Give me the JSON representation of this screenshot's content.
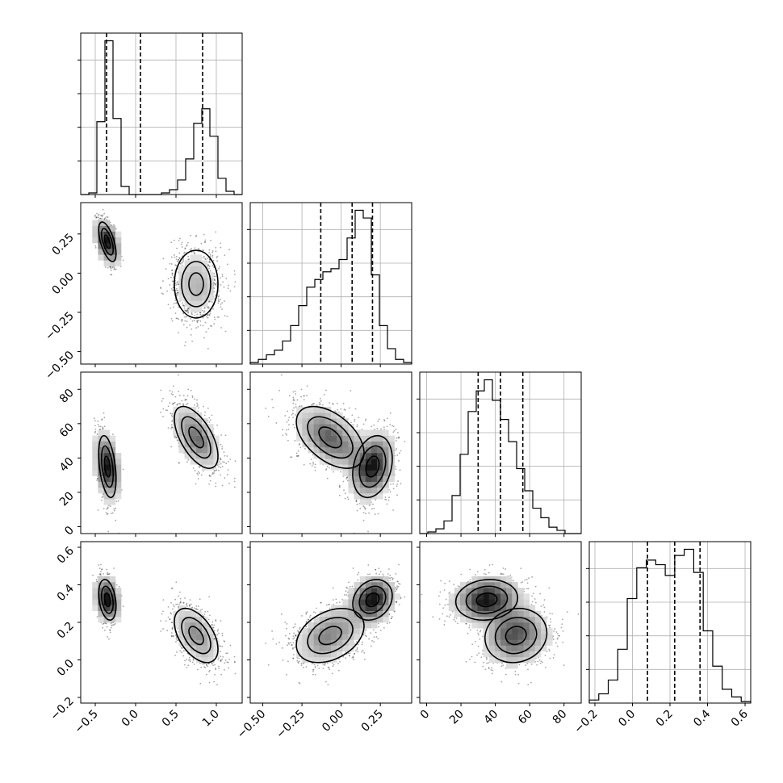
{
  "chart_data": {
    "type": "corner",
    "variables": [
      {
        "id": "p0",
        "range": [
          -0.68,
          1.32
        ],
        "ticks": [
          "-0.5",
          "0.0",
          "0.5",
          "1.0"
        ],
        "tick_values": [
          -0.5,
          0.0,
          0.5,
          1.0
        ]
      },
      {
        "id": "p1",
        "range": [
          -0.58,
          0.45
        ],
        "ticks": [
          "-0.50",
          "-0.25",
          "0.00",
          "0.25"
        ],
        "tick_values": [
          -0.5,
          -0.25,
          0.0,
          0.25
        ]
      },
      {
        "id": "p2",
        "range": [
          -4,
          90
        ],
        "ticks": [
          "0",
          "20",
          "40",
          "60",
          "80"
        ],
        "tick_values": [
          0,
          20,
          40,
          60,
          80
        ]
      },
      {
        "id": "p3",
        "range": [
          -0.23,
          0.63
        ],
        "ticks": [
          "-0.2",
          "0.0",
          "0.2",
          "0.4",
          "0.6"
        ],
        "tick_values": [
          -0.2,
          0.0,
          0.2,
          0.4,
          0.6
        ]
      }
    ],
    "quantiles": [
      [
        -0.36,
        0.06,
        0.83
      ],
      [
        -0.13,
        0.07,
        0.2
      ],
      [
        30,
        43,
        56
      ],
      [
        0.08,
        0.225,
        0.36
      ]
    ],
    "histograms": [
      {
        "edges_range": [
          -0.68,
          1.32
        ],
        "counts": [
          0,
          1,
          45,
          95,
          47,
          5,
          0,
          0,
          0,
          0,
          1,
          3,
          9,
          22,
          44,
          53,
          36,
          10,
          2,
          0
        ]
      },
      {
        "edges_range": [
          -0.58,
          0.45
        ],
        "counts": [
          1,
          3,
          6,
          9,
          15,
          25,
          38,
          50,
          55,
          60,
          62,
          68,
          82,
          100,
          95,
          58,
          25,
          10,
          3,
          1
        ]
      },
      {
        "edges_range": [
          -4,
          90
        ],
        "counts": [
          0,
          1,
          3,
          8,
          24,
          50,
          77,
          90,
          97,
          84,
          72,
          58,
          41,
          27,
          16,
          10,
          4,
          2,
          0,
          0
        ]
      },
      {
        "edges_range": [
          -0.23,
          0.63
        ],
        "counts": [
          2,
          6,
          15,
          35,
          68,
          88,
          93,
          90,
          83,
          96,
          100,
          85,
          47,
          24,
          9,
          4,
          1
        ]
      }
    ],
    "modes": [
      [
        {
          "w": 0.5,
          "m": [
            -0.35,
            0.2,
            35,
            0.32
          ],
          "s": [
            0.06,
            0.07,
            10,
            0.06
          ],
          "corr": [
            [
              1,
              -0.6,
              -0.4,
              -0.3
            ],
            [
              -0.6,
              1,
              0.25,
              0.2
            ],
            [
              -0.4,
              0.25,
              1,
              0.1
            ],
            [
              -0.3,
              0.2,
              0.1,
              1
            ]
          ]
        }
      ],
      [
        {
          "w": 0.5,
          "m": [
            0.75,
            -0.07,
            52,
            0.13
          ],
          "s": [
            0.15,
            0.12,
            10,
            0.08
          ],
          "corr": [
            [
              1,
              0,
              -0.6,
              -0.5
            ],
            [
              0,
              1,
              -0.5,
              0.35
            ],
            [
              -0.6,
              -0.5,
              1,
              0.1
            ],
            [
              -0.5,
              0.35,
              0.1,
              1
            ]
          ]
        }
      ]
    ]
  }
}
